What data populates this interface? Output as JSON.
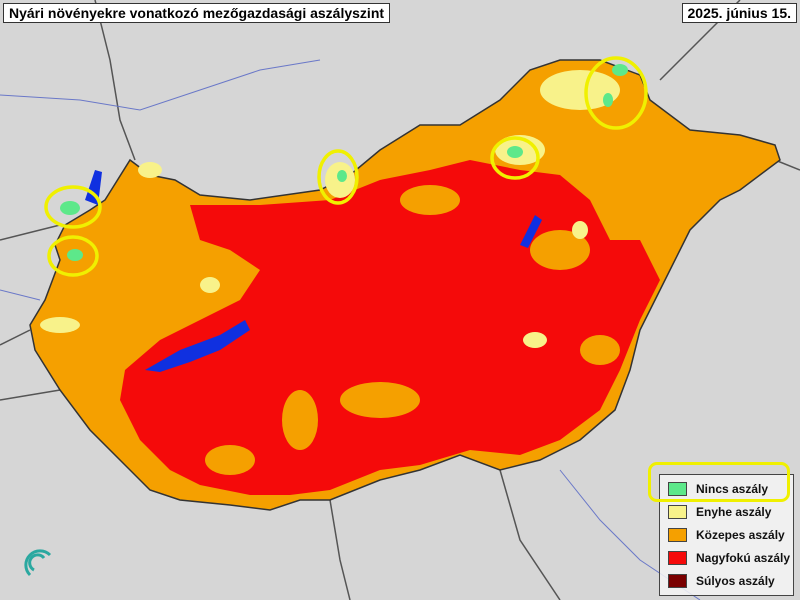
{
  "header": {
    "title": "Nyári növényekre vonatkozó mezőgazdasági aszályszint",
    "date": "2025. június 15."
  },
  "legend": {
    "items": [
      {
        "label": "Nincs aszály",
        "color": "#5de88a"
      },
      {
        "label": "Enyhe aszály",
        "color": "#f8f28a"
      },
      {
        "label": "Közepes aszály",
        "color": "#f5a000"
      },
      {
        "label": "Nagyfokú aszály",
        "color": "#f50a0a"
      },
      {
        "label": "Súlyos aszály",
        "color": "#7a0000"
      }
    ],
    "highlighted": "Nincs aszály"
  },
  "map": {
    "background": "#d6d6d6",
    "water": "#1030e0",
    "highlight": "#f0f000"
  }
}
